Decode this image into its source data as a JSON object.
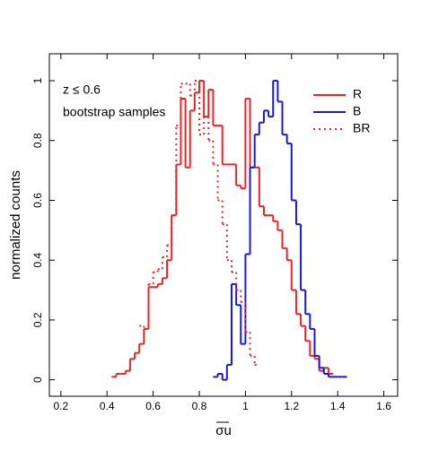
{
  "chart_data": {
    "type": "histogram",
    "xlabel": "σu",
    "ylabel": "normalized counts",
    "annotations": [
      "z ≤ 0.6",
      "bootstrap samples"
    ],
    "xlim": [
      0.15,
      1.66
    ],
    "ylim": [
      -0.055,
      1.09
    ],
    "xticks": [
      0.2,
      0.4,
      0.6,
      0.8,
      1,
      1.2,
      1.4,
      1.6
    ],
    "yticks": [
      0,
      0.2,
      0.4,
      0.6,
      0.8,
      1
    ],
    "legend": "upper right",
    "series": [
      {
        "name": "R",
        "color": "#e8262a",
        "style": "solid",
        "bins": [
          0.42,
          0.44,
          0.46,
          0.48,
          0.5,
          0.52,
          0.54,
          0.56,
          0.58,
          0.6,
          0.62,
          0.64,
          0.66,
          0.68,
          0.7,
          0.72,
          0.74,
          0.76,
          0.78,
          0.8,
          0.82,
          0.84,
          0.86,
          0.88,
          0.9,
          0.92,
          0.94,
          0.96,
          0.98,
          1.0,
          1.02,
          1.04,
          1.06,
          1.08,
          1.1,
          1.12,
          1.14,
          1.16,
          1.18,
          1.2,
          1.22,
          1.24,
          1.26,
          1.28,
          1.3,
          1.32,
          1.34,
          1.36,
          1.38
        ],
        "values": [
          0.01,
          0.02,
          0.02,
          0.03,
          0.07,
          0.09,
          0.12,
          0.17,
          0.31,
          0.31,
          0.32,
          0.34,
          0.4,
          0.55,
          0.72,
          0.94,
          0.71,
          0.9,
          0.96,
          1.0,
          0.88,
          0.97,
          0.85,
          0.85,
          0.72,
          0.72,
          0.72,
          0.65,
          0.64,
          0.94,
          0.71,
          0.71,
          0.58,
          0.55,
          0.55,
          0.53,
          0.5,
          0.44,
          0.4,
          0.3,
          0.22,
          0.18,
          0.13,
          0.08,
          0.07,
          0.03,
          0.04,
          0.02
        ]
      },
      {
        "name": "B",
        "color": "#1a1ad6",
        "style": "solid",
        "bins": [
          0.86,
          0.88,
          0.9,
          0.92,
          0.94,
          0.96,
          0.98,
          1.0,
          1.02,
          1.04,
          1.06,
          1.08,
          1.1,
          1.12,
          1.14,
          1.16,
          1.18,
          1.2,
          1.22,
          1.24,
          1.26,
          1.28,
          1.3,
          1.32,
          1.34,
          1.36,
          1.38,
          1.4,
          1.42,
          1.44
        ],
        "values": [
          0.01,
          0.02,
          0.0,
          0.05,
          0.32,
          0.25,
          0.12,
          0.42,
          0.71,
          0.82,
          0.86,
          0.9,
          0.88,
          1.0,
          0.93,
          0.82,
          0.79,
          0.6,
          0.52,
          0.3,
          0.22,
          0.17,
          0.08,
          0.04,
          0.02,
          0.01,
          0.01,
          0.01,
          0.01
        ]
      },
      {
        "name": "BR",
        "color": "#e8262a",
        "style": "dotted",
        "bins": [
          0.54,
          0.56,
          0.58,
          0.6,
          0.62,
          0.64,
          0.66,
          0.68,
          0.7,
          0.72,
          0.74,
          0.76,
          0.78,
          0.8,
          0.82,
          0.84,
          0.86,
          0.88,
          0.9,
          0.92,
          0.94,
          0.96,
          0.98,
          1.0,
          1.02,
          1.04,
          1.06
        ],
        "values": [
          0.18,
          0.17,
          0.32,
          0.36,
          0.37,
          0.41,
          0.45,
          0.55,
          0.85,
          0.99,
          0.99,
          0.95,
          1.0,
          0.82,
          0.88,
          0.8,
          0.72,
          0.6,
          0.52,
          0.4,
          0.36,
          0.3,
          0.26,
          0.16,
          0.08,
          0.05
        ]
      }
    ]
  }
}
